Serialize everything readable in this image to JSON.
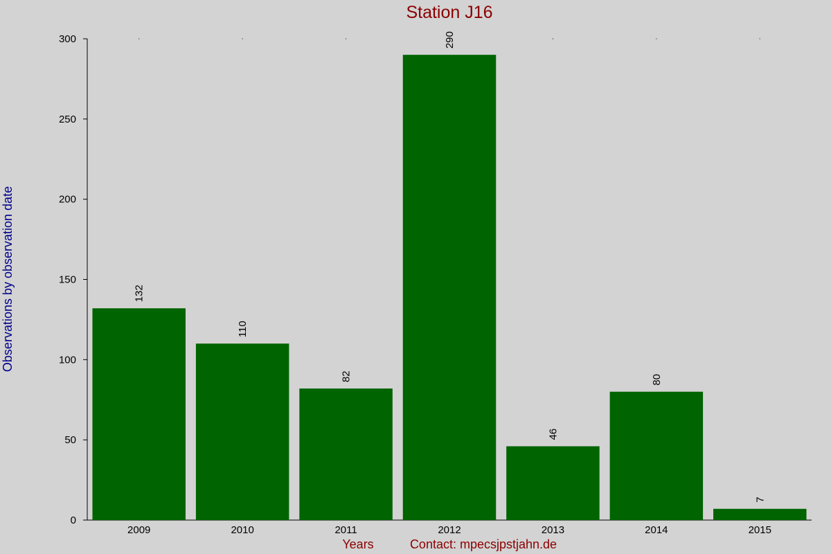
{
  "chart_data": {
    "type": "bar",
    "title": "Station J16",
    "xlabel": "Years",
    "ylabel": "Observations by observation date",
    "categories": [
      "2009",
      "2010",
      "2011",
      "2012",
      "2013",
      "2014",
      "2015"
    ],
    "values": [
      132,
      110,
      82,
      290,
      46,
      80,
      7
    ],
    "ylim": [
      0,
      300
    ],
    "yticks": [
      0,
      50,
      100,
      150,
      200,
      250,
      300
    ],
    "grid": false,
    "legend": "none",
    "bar_color": "#006400",
    "background_color": "#d3d3d3",
    "title_color": "#8b0000",
    "ylabel_color": "#00008b"
  },
  "footer": {
    "contact": "Contact: mpecsjpstjahn.de"
  }
}
